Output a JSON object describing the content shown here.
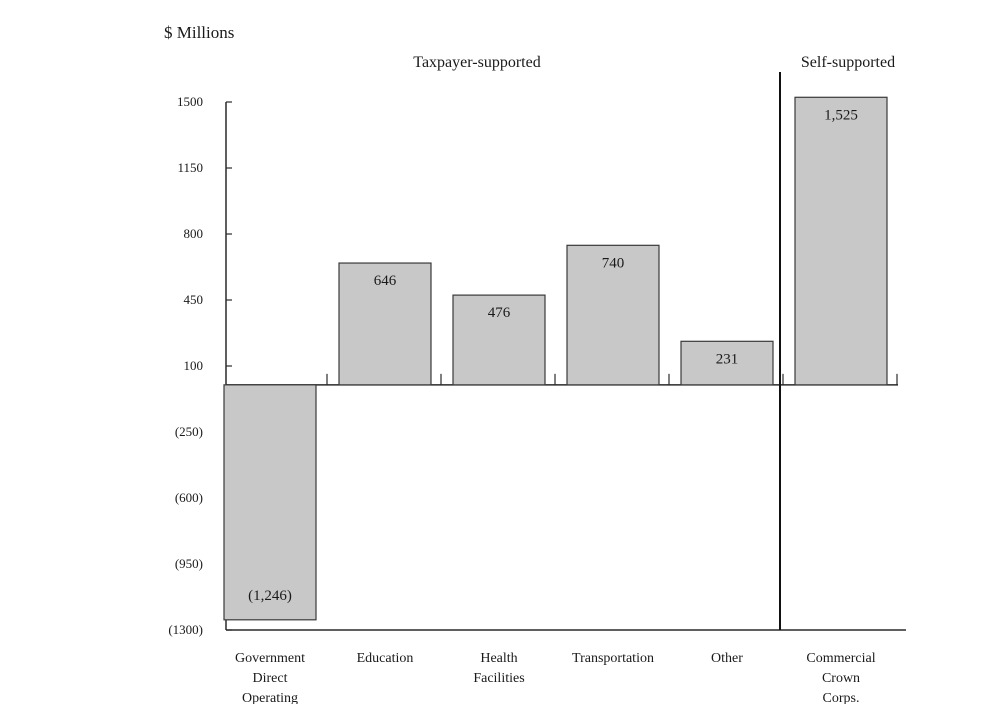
{
  "chart_data": {
    "type": "bar",
    "unit_label": "$ Millions",
    "section_labels": {
      "taxpayer": "Taxpayer-supported",
      "self": "Self-supported"
    },
    "categories": [
      [
        "Government",
        "Direct",
        "Operating"
      ],
      [
        "Education"
      ],
      [
        "Health",
        "Facilities"
      ],
      [
        "Transportation"
      ],
      [
        "Other"
      ],
      [
        "Commercial",
        "Crown",
        "Corps."
      ]
    ],
    "values": [
      -1246,
      646,
      476,
      740,
      231,
      1525
    ],
    "value_labels": [
      "(1,246)",
      "646",
      "476",
      "740",
      "231",
      "1,525"
    ],
    "y_ticks": [
      1500,
      1150,
      800,
      450,
      100,
      -250,
      -600,
      -950,
      -1300
    ],
    "y_tick_labels": [
      "1500",
      "1150",
      "800",
      "450",
      "100",
      "(250)",
      "(600)",
      "(950)",
      "(1300)"
    ],
    "ylim": [
      -1300,
      1500
    ],
    "grid": false,
    "colors": {
      "bar_fill": "#c8c8c8",
      "bar_stroke": "#3a3a3a",
      "divider": "#111111"
    }
  }
}
